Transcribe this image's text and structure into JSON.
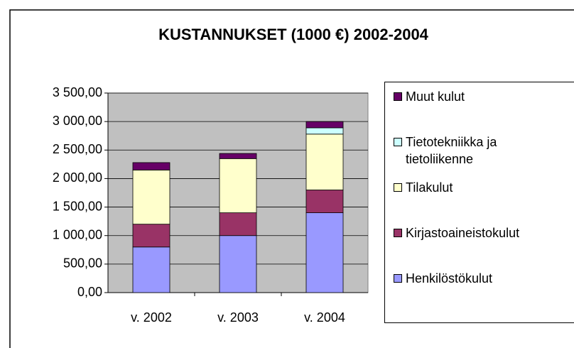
{
  "chart_data": {
    "type": "stacked_bar",
    "title": "KUSTANNUKSET (1000 €) 2002-2004",
    "categories": [
      "v. 2002",
      "v. 2003",
      "v. 2004"
    ],
    "series": [
      {
        "name": "Henkilöstökulut",
        "color": "#9999ff",
        "values": [
          800,
          1000,
          1400
        ]
      },
      {
        "name": "Kirjastoaineistokulut",
        "color": "#993366",
        "values": [
          400,
          400,
          400
        ]
      },
      {
        "name": "Tilakulut",
        "color": "#ffffcc",
        "values": [
          950,
          950,
          980
        ]
      },
      {
        "name": "Tietotekniikka ja tietoliikenne",
        "color": "#ccffff",
        "values": [
          0,
          0,
          110
        ]
      },
      {
        "name": "Muut kulut",
        "color": "#660066",
        "values": [
          130,
          90,
          110
        ]
      }
    ],
    "ylim": [
      0,
      3500
    ],
    "yticks": [
      {
        "value": 0,
        "label": "0,00"
      },
      {
        "value": 500,
        "label": "500,00"
      },
      {
        "value": 1000,
        "label": "1 000,00"
      },
      {
        "value": 1500,
        "label": "1 500,00"
      },
      {
        "value": 2000,
        "label": "2 000,00"
      },
      {
        "value": 2500,
        "label": "2 500,00"
      },
      {
        "value": 3000,
        "label": "3 000,00"
      },
      {
        "value": 3500,
        "label": "3 500,00"
      }
    ],
    "grid": true,
    "plot_background": "#c0c0c0",
    "legend": "right"
  }
}
